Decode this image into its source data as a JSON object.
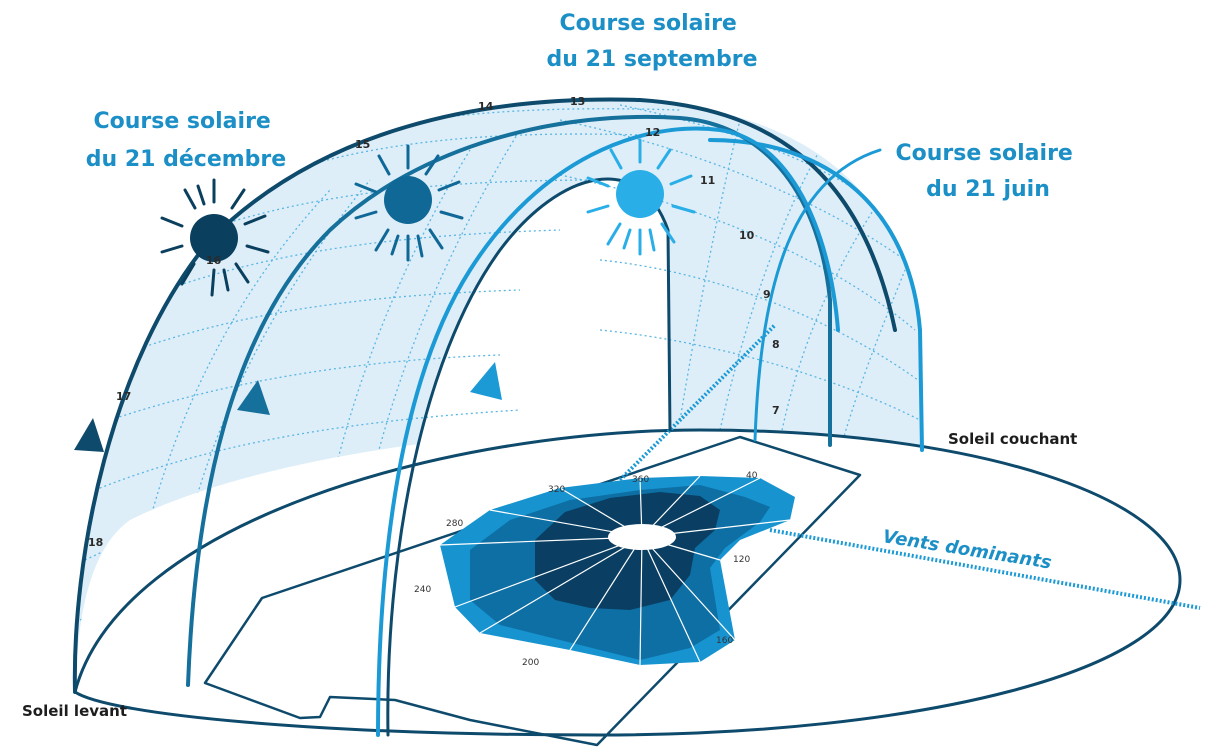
{
  "labels": {
    "september": [
      "Course solaire",
      "du 21 septembre"
    ],
    "december": [
      "Course solaire",
      "du 21 décembre"
    ],
    "june": [
      "Course solaire",
      "du 21 juin"
    ],
    "sunset": "Soleil couchant",
    "sunrise": "Soleil levant",
    "winds": "Vents dominants"
  },
  "hours": [
    "7",
    "8",
    "9",
    "10",
    "11",
    "12",
    "13",
    "14",
    "15",
    "16",
    "17",
    "18"
  ],
  "degrees": [
    "40",
    "120",
    "160",
    "200",
    "240",
    "280",
    "320",
    "360"
  ],
  "colors": {
    "december_arc": "#0e4a6c",
    "september_arc": "#16709c",
    "june_arc": "#1b9ad6",
    "dome_fill": "#ddeef8",
    "grid": "#5ab6e4",
    "sun_december": "#0b3f5e",
    "sun_september": "#0f6896",
    "sun_june": "#2aaee8",
    "rose_outer": "#1794d0",
    "rose_mid": "#0d6fa4",
    "rose_inner": "#0a3f63",
    "text_blue": "#1b8fc6"
  }
}
